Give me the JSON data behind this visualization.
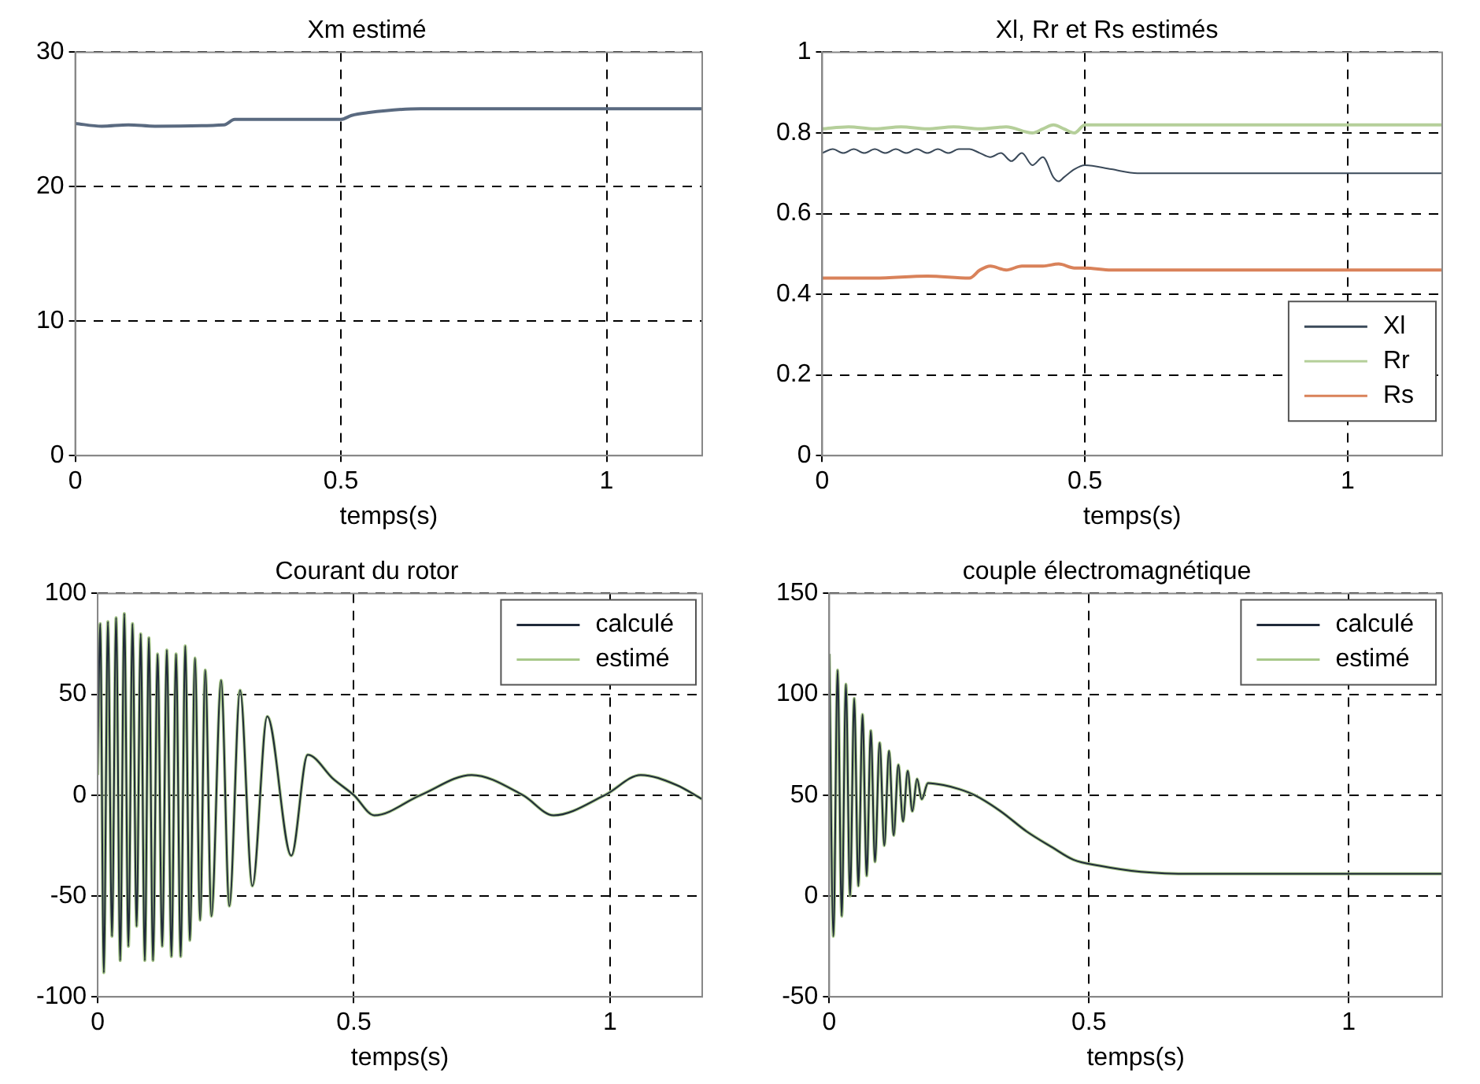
{
  "chart_data": [
    {
      "type": "line",
      "title": "Xm estimé",
      "xlabel": "temps(s)",
      "xlim": [
        0,
        1.18
      ],
      "xticks": [
        0,
        0.5,
        1
      ],
      "ylim": [
        0,
        30
      ],
      "yticks": [
        0,
        10,
        20,
        30
      ],
      "grid": true,
      "marker": "none",
      "line_style": "solid",
      "series": [
        {
          "color": "#5a6a80",
          "x": [
            0,
            0.05,
            0.1,
            0.15,
            0.28,
            0.3,
            0.5,
            0.52,
            0.55,
            0.65,
            1.18
          ],
          "values": [
            24.7,
            24.5,
            24.6,
            24.5,
            24.6,
            25.0,
            25.0,
            25.3,
            25.5,
            25.8,
            25.8
          ]
        }
      ]
    },
    {
      "type": "line",
      "title": "Xl, Rr et Rs estimés",
      "xlabel": "temps(s)",
      "xlim": [
        0,
        1.18
      ],
      "xticks": [
        0,
        0.5,
        1
      ],
      "ylim": [
        0,
        1
      ],
      "yticks": [
        0,
        0.2,
        0.4,
        0.6,
        0.8,
        1
      ],
      "grid": true,
      "marker": "none",
      "line_style": "solid",
      "legend": "bottom right",
      "series": [
        {
          "name": "Xl",
          "color": "#3b4a5a",
          "x": [
            0,
            0.02,
            0.04,
            0.06,
            0.08,
            0.1,
            0.12,
            0.14,
            0.16,
            0.18,
            0.2,
            0.22,
            0.24,
            0.26,
            0.28,
            0.3,
            0.32,
            0.34,
            0.36,
            0.38,
            0.4,
            0.42,
            0.44,
            0.45,
            0.46,
            0.48,
            0.5,
            0.55,
            0.6,
            0.7,
            0.9,
            1.18
          ],
          "values": [
            0.75,
            0.76,
            0.75,
            0.76,
            0.75,
            0.76,
            0.75,
            0.76,
            0.75,
            0.76,
            0.75,
            0.76,
            0.75,
            0.76,
            0.76,
            0.75,
            0.74,
            0.75,
            0.73,
            0.75,
            0.72,
            0.74,
            0.69,
            0.68,
            0.69,
            0.71,
            0.72,
            0.71,
            0.7,
            0.7,
            0.7,
            0.7
          ]
        },
        {
          "name": "Rr",
          "color": "#b5cf9a",
          "x": [
            0,
            0.05,
            0.1,
            0.15,
            0.2,
            0.25,
            0.3,
            0.35,
            0.4,
            0.42,
            0.44,
            0.46,
            0.48,
            0.5,
            0.6,
            1.18
          ],
          "values": [
            0.81,
            0.815,
            0.81,
            0.815,
            0.81,
            0.815,
            0.81,
            0.815,
            0.8,
            0.81,
            0.82,
            0.81,
            0.8,
            0.82,
            0.82,
            0.82
          ]
        },
        {
          "name": "Rs",
          "color": "#d9825a",
          "x": [
            0,
            0.1,
            0.2,
            0.28,
            0.3,
            0.32,
            0.35,
            0.38,
            0.42,
            0.45,
            0.48,
            0.5,
            0.55,
            0.6,
            1.18
          ],
          "values": [
            0.44,
            0.44,
            0.445,
            0.44,
            0.46,
            0.47,
            0.46,
            0.47,
            0.47,
            0.475,
            0.465,
            0.465,
            0.46,
            0.46,
            0.46
          ]
        }
      ]
    },
    {
      "type": "line",
      "title": "Courant du rotor",
      "xlabel": "temps(s)",
      "xlim": [
        0,
        1.18
      ],
      "xticks": [
        0,
        0.5,
        1
      ],
      "ylim": [
        -100,
        100
      ],
      "yticks": [
        -100,
        -50,
        0,
        50,
        100
      ],
      "grid": true,
      "marker": "none",
      "line_style": "solid",
      "legend": "top right",
      "series": [
        {
          "name": "calculé",
          "color": "#202a3a",
          "x": [
            0,
            0.005,
            0.012,
            0.02,
            0.028,
            0.036,
            0.044,
            0.052,
            0.06,
            0.068,
            0.076,
            0.084,
            0.092,
            0.1,
            0.108,
            0.117,
            0.126,
            0.135,
            0.144,
            0.153,
            0.162,
            0.171,
            0.18,
            0.19,
            0.2,
            0.21,
            0.222,
            0.241,
            0.257,
            0.278,
            0.302,
            0.331,
            0.378,
            0.41,
            0.46,
            0.5,
            0.54,
            0.63,
            0.73,
            0.83,
            0.89,
            0.99,
            1.06,
            1.13,
            1.18
          ],
          "values": [
            10,
            85,
            -88,
            86,
            -70,
            88,
            -82,
            90,
            -75,
            85,
            -65,
            80,
            -82,
            78,
            -82,
            70,
            -75,
            72,
            -80,
            70,
            -80,
            74,
            -72,
            68,
            -62,
            62,
            -60,
            57,
            -55,
            52,
            -45,
            39,
            -30,
            20,
            8,
            0,
            -10,
            0,
            10,
            0,
            -10,
            0,
            10,
            5,
            -2
          ]
        },
        {
          "name": "estimé",
          "color": "#a8c88a",
          "x": [
            0,
            0.005,
            0.012,
            0.02,
            0.028,
            0.036,
            0.044,
            0.052,
            0.06,
            0.068,
            0.076,
            0.084,
            0.092,
            0.1,
            0.108,
            0.117,
            0.126,
            0.135,
            0.144,
            0.153,
            0.162,
            0.171,
            0.18,
            0.19,
            0.2,
            0.21,
            0.222,
            0.241,
            0.257,
            0.278,
            0.302,
            0.331,
            0.378,
            0.41,
            0.46,
            0.5,
            0.54,
            0.63,
            0.73,
            0.83,
            0.89,
            0.99,
            1.06,
            1.13,
            1.18
          ],
          "values": [
            10,
            85,
            -88,
            86,
            -70,
            88,
            -82,
            90,
            -75,
            85,
            -65,
            80,
            -82,
            78,
            -82,
            70,
            -75,
            72,
            -80,
            70,
            -80,
            74,
            -72,
            68,
            -62,
            62,
            -60,
            57,
            -55,
            52,
            -45,
            39,
            -30,
            20,
            8,
            0,
            -10,
            0,
            10,
            0,
            -10,
            0,
            10,
            5,
            -2
          ]
        }
      ]
    },
    {
      "type": "line",
      "title": "couple électromagnétique",
      "xlabel": "temps(s)",
      "xlim": [
        0,
        1.18
      ],
      "xticks": [
        0,
        0.5,
        1
      ],
      "ylim": [
        -50,
        150
      ],
      "yticks": [
        -50,
        0,
        50,
        100,
        150
      ],
      "grid": true,
      "marker": "none",
      "line_style": "solid",
      "legend": "top right",
      "series": [
        {
          "name": "calculé",
          "color": "#202a3a",
          "x": [
            0,
            0.008,
            0.016,
            0.024,
            0.032,
            0.04,
            0.048,
            0.056,
            0.064,
            0.072,
            0.08,
            0.088,
            0.097,
            0.106,
            0.115,
            0.124,
            0.133,
            0.142,
            0.151,
            0.16,
            0.169,
            0.178,
            0.19,
            0.22,
            0.25,
            0.28,
            0.33,
            0.38,
            0.43,
            0.47,
            0.52,
            0.6,
            0.7,
            1.18
          ],
          "values": [
            120,
            -20,
            112,
            -10,
            105,
            0,
            98,
            5,
            90,
            10,
            82,
            17,
            76,
            25,
            72,
            30,
            65,
            37,
            62,
            42,
            58,
            48,
            56,
            55,
            53,
            50,
            42,
            32,
            24,
            18,
            15,
            12,
            11,
            11
          ]
        },
        {
          "name": "estimé",
          "color": "#a8c88a",
          "x": [
            0,
            0.008,
            0.016,
            0.024,
            0.032,
            0.04,
            0.048,
            0.056,
            0.064,
            0.072,
            0.08,
            0.088,
            0.097,
            0.106,
            0.115,
            0.124,
            0.133,
            0.142,
            0.151,
            0.16,
            0.169,
            0.178,
            0.19,
            0.22,
            0.25,
            0.28,
            0.33,
            0.38,
            0.43,
            0.47,
            0.52,
            0.6,
            0.7,
            1.18
          ],
          "values": [
            120,
            -20,
            112,
            -10,
            105,
            0,
            98,
            5,
            90,
            10,
            82,
            17,
            76,
            25,
            72,
            30,
            65,
            37,
            62,
            42,
            58,
            48,
            56,
            55,
            53,
            50,
            42,
            32,
            24,
            18,
            15,
            12,
            11,
            11
          ]
        }
      ]
    }
  ]
}
